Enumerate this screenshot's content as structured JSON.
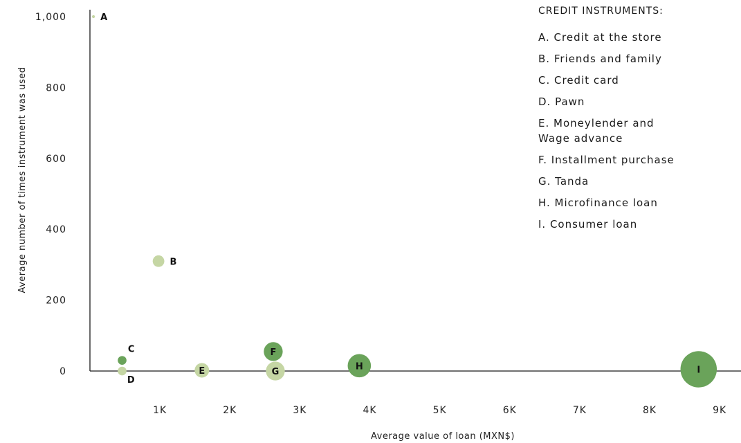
{
  "chart_data": {
    "type": "scatter",
    "xlabel": "Average value of loan (MXN$)",
    "ylabel": "Average number of times instrument was used",
    "xlim": [
      0,
      9400
    ],
    "ylim": [
      -50,
      1020
    ],
    "x_ticks": [
      {
        "value": 1000,
        "label": "1K"
      },
      {
        "value": 2000,
        "label": "2K"
      },
      {
        "value": 3000,
        "label": "3K"
      },
      {
        "value": 4000,
        "label": "4K"
      },
      {
        "value": 5000,
        "label": "5K"
      },
      {
        "value": 6000,
        "label": "6K"
      },
      {
        "value": 7000,
        "label": "7K"
      },
      {
        "value": 8000,
        "label": "8K"
      },
      {
        "value": 9000,
        "label": "9K"
      }
    ],
    "y_ticks": [
      {
        "value": 0,
        "label": "0"
      },
      {
        "value": 200,
        "label": "200"
      },
      {
        "value": 400,
        "label": "400"
      },
      {
        "value": 600,
        "label": "600"
      },
      {
        "value": 800,
        "label": "800"
      },
      {
        "value": 1000,
        "label": "1,000"
      }
    ],
    "points": [
      {
        "label": "A",
        "x": 50,
        "y": 1000,
        "size": 2,
        "color": "#c5d6a4",
        "label_pos": "right",
        "label_in": false
      },
      {
        "label": "B",
        "x": 980,
        "y": 310,
        "size": 8,
        "color": "#c5d6a4",
        "label_pos": "right",
        "label_in": false
      },
      {
        "label": "C",
        "x": 460,
        "y": 30,
        "size": 6,
        "color": "#6aa35a",
        "label_pos": "upper-right",
        "label_in": false
      },
      {
        "label": "D",
        "x": 460,
        "y": 0,
        "size": 6,
        "color": "#c5d6a4",
        "label_pos": "lower-right",
        "label_in": false
      },
      {
        "label": "E",
        "x": 1600,
        "y": 2,
        "size": 10,
        "color": "#c5d6a4",
        "label_pos": "center",
        "label_in": true
      },
      {
        "label": "F",
        "x": 2620,
        "y": 55,
        "size": 13,
        "color": "#6aa35a",
        "label_pos": "center",
        "label_in": true
      },
      {
        "label": "G",
        "x": 2650,
        "y": 0,
        "size": 13,
        "color": "#c5d6a4",
        "label_pos": "center",
        "label_in": true
      },
      {
        "label": "H",
        "x": 3850,
        "y": 15,
        "size": 16,
        "color": "#6aa35a",
        "label_pos": "center",
        "label_in": true
      },
      {
        "label": "I",
        "x": 8700,
        "y": 5,
        "size": 25,
        "color": "#6aa35a",
        "label_pos": "center",
        "label_in": true
      }
    ],
    "legend_title": "CREDIT INSTRUMENTS:",
    "legend_items": [
      "A. Credit at the store",
      "B. Friends and family",
      "C. Credit card",
      "D. Pawn",
      "E. Moneylender and\n   Wage advance",
      "F. Installment purchase",
      "G. Tanda",
      "H. Microfinance loan",
      "I. Consumer loan"
    ],
    "grid": false,
    "legend_position": "top-right",
    "colors": {
      "light": "#c5d6a4",
      "dark": "#6aa35a",
      "axis": "#1a1a1a"
    }
  }
}
